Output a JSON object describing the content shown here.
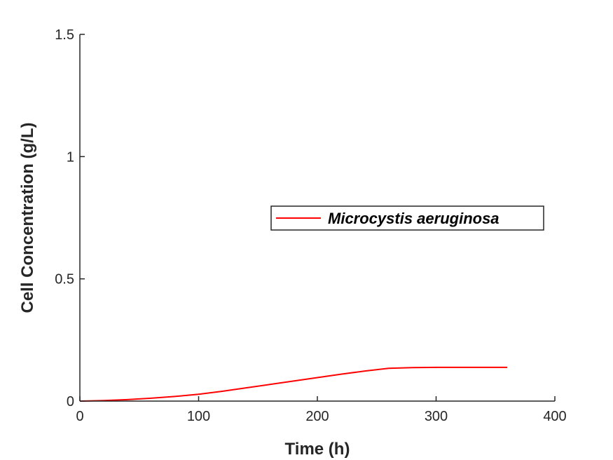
{
  "chart_data": {
    "type": "line",
    "title": "",
    "xlabel": "Time (h)",
    "ylabel": "Cell Concentration (g/L)",
    "xlim": [
      0,
      400
    ],
    "ylim": [
      0,
      1.5
    ],
    "xticks": [
      0,
      100,
      200,
      300,
      400
    ],
    "yticks": [
      0,
      0.5,
      1,
      1.5
    ],
    "xtick_labels": [
      "0",
      "100",
      "200",
      "300",
      "400"
    ],
    "ytick_labels": [
      "0",
      "0.5",
      "1",
      "1.5"
    ],
    "grid": false,
    "legend": {
      "placement": "center-right",
      "entries": [
        "Microcystis aeruginosa"
      ]
    },
    "series": [
      {
        "name": "Microcystis aeruginosa",
        "color": "#ff0000",
        "x": [
          0,
          20,
          40,
          60,
          80,
          100,
          120,
          140,
          160,
          180,
          200,
          220,
          240,
          260,
          280,
          300,
          320,
          340,
          360
        ],
        "y": [
          0,
          0.002,
          0.006,
          0.012,
          0.019,
          0.028,
          0.04,
          0.054,
          0.068,
          0.082,
          0.096,
          0.11,
          0.123,
          0.134,
          0.137,
          0.138,
          0.138,
          0.138,
          0.138
        ]
      }
    ]
  }
}
